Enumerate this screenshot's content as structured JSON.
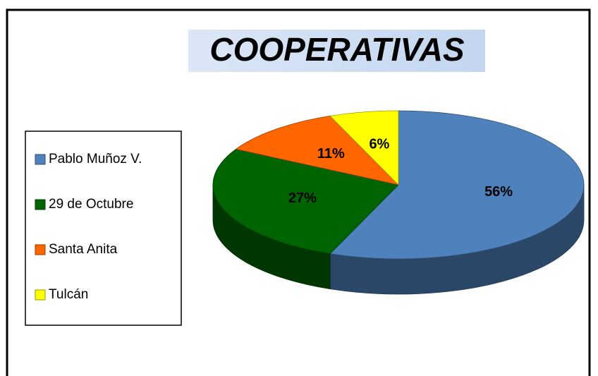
{
  "chart_data": {
    "type": "pie",
    "title": "COOPERATIVAS",
    "categories": [
      "Pablo Muñoz V.",
      "29 de Octubre",
      "Santa Anita",
      "Tulcán"
    ],
    "values": [
      56,
      27,
      11,
      6
    ],
    "value_labels": [
      "56%",
      "27%",
      "11%",
      "6%"
    ],
    "colors": [
      "#4f81bd",
      "#006400",
      "#ff6600",
      "#ffff00"
    ],
    "legend": "left"
  }
}
